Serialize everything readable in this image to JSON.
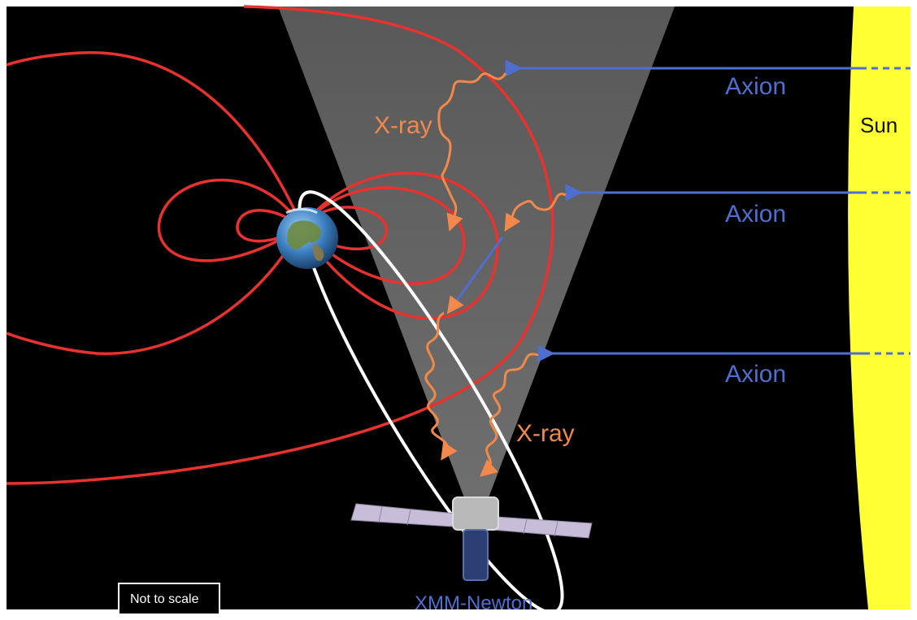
{
  "diagram": {
    "labels": {
      "sun": "Sun",
      "axion_1": "Axion",
      "axion_2": "Axion",
      "axion_3": "Axion",
      "xray_upper": "X-ray",
      "xray_lower": "X-ray",
      "satellite": "XMM-Newton",
      "scale_note": "Not to scale"
    },
    "colors": {
      "background": "#000000",
      "sun": "#ffff33",
      "field_lines": "#e8322e",
      "axion": "#4f6fd0",
      "xray": "#f2894a",
      "orbit": "#ffffff",
      "field_of_view": "#7a7a7a"
    },
    "icons": [
      "earth-icon",
      "satellite-icon"
    ]
  }
}
